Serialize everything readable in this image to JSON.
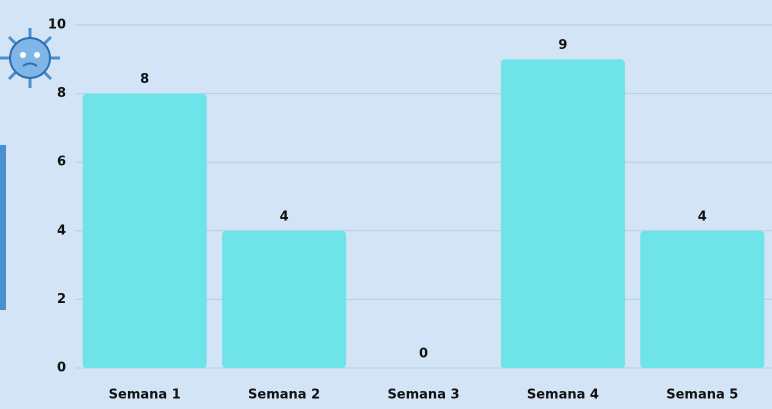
{
  "chart_data": {
    "type": "bar",
    "categories": [
      "Semana 1",
      "Semana 2",
      "Semana 3",
      "Semana 4",
      "Semana 5"
    ],
    "values": [
      8,
      4,
      0,
      9,
      4
    ],
    "color": "#6ee3e8",
    "ylim": [
      0,
      10
    ],
    "yticks": [
      0,
      2,
      4,
      6,
      8,
      10
    ],
    "grid": true
  }
}
